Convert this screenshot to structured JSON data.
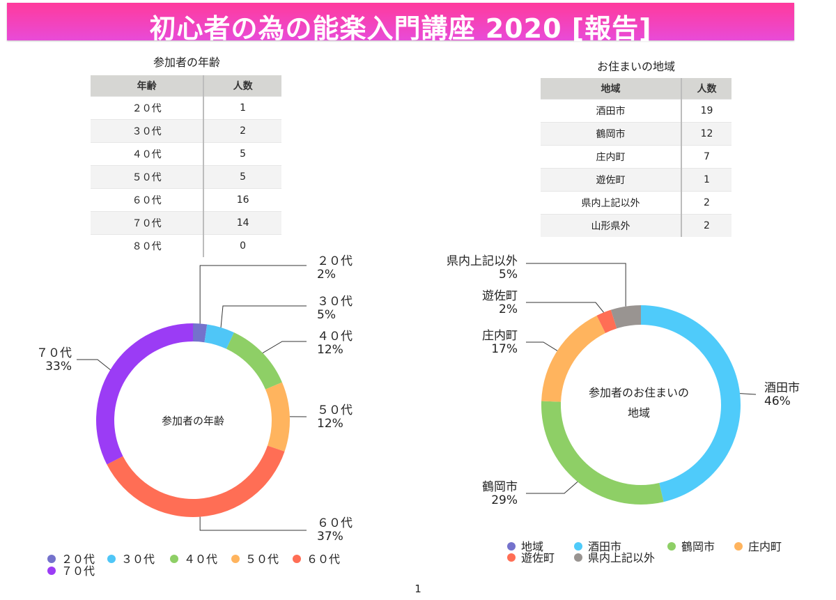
{
  "title": "初心者の為の能楽入門講座 2020 [報告]",
  "page_number": "1",
  "age_table": {
    "title": "参加者の年齢",
    "headers": [
      "年齢",
      "人数"
    ],
    "rows": [
      [
        "２０代",
        "1"
      ],
      [
        "３０代",
        "2"
      ],
      [
        "４０代",
        "5"
      ],
      [
        "５０代",
        "5"
      ],
      [
        "６０代",
        "16"
      ],
      [
        "７０代",
        "14"
      ],
      [
        "８０代",
        "0"
      ]
    ]
  },
  "region_table": {
    "title": "お住まいの地域",
    "headers": [
      "地域",
      "人数"
    ],
    "rows": [
      [
        "酒田市",
        "19"
      ],
      [
        "鶴岡市",
        "12"
      ],
      [
        "庄内町",
        "7"
      ],
      [
        "遊佐町",
        "1"
      ],
      [
        "県内上記以外",
        "2"
      ],
      [
        "山形県外",
        "2"
      ]
    ]
  },
  "chart_data": [
    {
      "type": "pie",
      "donut": true,
      "center_label": "参加者の年齢",
      "categories": [
        "２０代",
        "３０代",
        "４０代",
        "５０代",
        "６０代",
        "７０代"
      ],
      "values": [
        1,
        2,
        5,
        5,
        16,
        14
      ],
      "percent_labels": [
        "2%",
        "5%",
        "12%",
        "12%",
        "37%",
        "33%"
      ],
      "colors": [
        "#7472cc",
        "#4fc6f7",
        "#8ecf66",
        "#ffb45e",
        "#ff6e55",
        "#9b3cf5"
      ],
      "legend_position": "bottom",
      "legend": [
        "２０代",
        "３０代",
        "４０代",
        "５０代",
        "６０代",
        "７０代"
      ]
    },
    {
      "type": "pie",
      "donut": true,
      "center_label": [
        "参加者のお住まいの",
        "地域"
      ],
      "categories": [
        "酒田市",
        "鶴岡市",
        "庄内町",
        "遊佐町",
        "県内上記以外"
      ],
      "values": [
        19,
        12,
        7,
        1,
        2
      ],
      "percent_labels": [
        "46%",
        "29%",
        "17%",
        "2%",
        "5%"
      ],
      "colors": [
        "#4fcbfa",
        "#8ecf66",
        "#ffb45e",
        "#ff6e55",
        "#999491"
      ],
      "legend_position": "bottom",
      "legend": [
        "地域",
        "酒田市",
        "鶴岡市",
        "庄内町",
        "遊佐町",
        "県内上記以外"
      ],
      "legend_colors": [
        "#7472cc",
        "#4fcbfa",
        "#8ecf66",
        "#ffb45e",
        "#ff6e55",
        "#999491"
      ]
    }
  ]
}
